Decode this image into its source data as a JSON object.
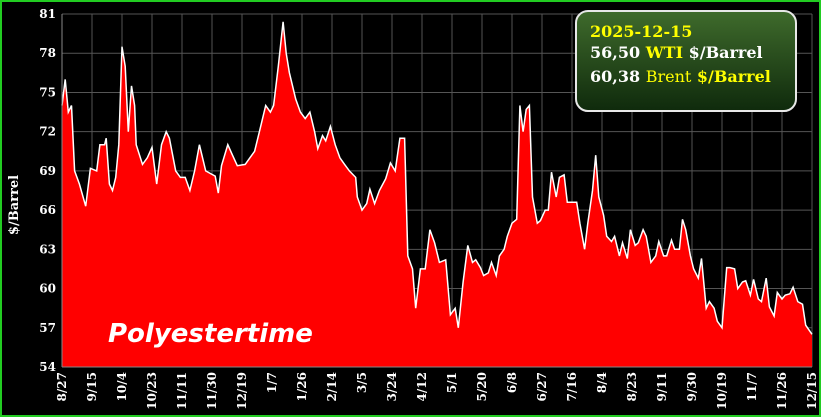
{
  "chart_data": {
    "type": "area",
    "ylabel": "$/Barrel",
    "watermark": "Polyestertime",
    "color": "#ff0000",
    "line_color": "#ffffff",
    "grid": true,
    "xlim": [
      0,
      475
    ],
    "ylim": [
      54,
      81
    ],
    "yticks": [
      54,
      57,
      60,
      63,
      66,
      69,
      72,
      75,
      78,
      81
    ],
    "xticks": [
      {
        "value": 0,
        "label": "8/27"
      },
      {
        "value": 19,
        "label": "9/15"
      },
      {
        "value": 38,
        "label": "10/4"
      },
      {
        "value": 57,
        "label": "10/23"
      },
      {
        "value": 76,
        "label": "11/11"
      },
      {
        "value": 95,
        "label": "11/30"
      },
      {
        "value": 114,
        "label": "12/19"
      },
      {
        "value": 133,
        "label": "1/7"
      },
      {
        "value": 152,
        "label": "1/26"
      },
      {
        "value": 171,
        "label": "2/14"
      },
      {
        "value": 190,
        "label": "3/5"
      },
      {
        "value": 209,
        "label": "3/24"
      },
      {
        "value": 228,
        "label": "4/12"
      },
      {
        "value": 247,
        "label": "5/1"
      },
      {
        "value": 266,
        "label": "5/20"
      },
      {
        "value": 285,
        "label": "6/8"
      },
      {
        "value": 304,
        "label": "6/27"
      },
      {
        "value": 323,
        "label": "7/16"
      },
      {
        "value": 342,
        "label": "8/4"
      },
      {
        "value": 361,
        "label": "8/23"
      },
      {
        "value": 380,
        "label": "9/11"
      },
      {
        "value": 399,
        "label": "9/30"
      },
      {
        "value": 418,
        "label": "10/19"
      },
      {
        "value": 437,
        "label": "11/7"
      },
      {
        "value": 456,
        "label": "11/26"
      },
      {
        "value": 475,
        "label": "12/15"
      }
    ],
    "x": [
      0,
      2,
      4,
      6,
      8,
      11,
      15,
      18,
      22,
      24,
      27,
      28,
      30,
      32,
      34,
      36,
      38,
      40,
      42,
      44,
      46,
      47,
      51,
      54,
      57,
      60,
      63,
      66,
      68,
      72,
      75,
      78,
      81,
      84,
      87,
      91,
      94,
      97,
      99,
      101,
      105,
      108,
      111,
      116,
      119,
      122,
      125,
      129,
      132,
      134,
      137,
      140,
      142,
      144,
      148,
      151,
      154,
      157,
      160,
      162,
      165,
      167,
      170,
      173,
      176,
      179,
      182,
      186,
      187,
      190,
      193,
      195,
      198,
      201,
      205,
      208,
      211,
      214,
      217,
      219,
      222,
      224,
      227,
      230,
      233,
      236,
      239,
      243,
      246,
      249,
      251,
      254,
      257,
      260,
      262,
      265,
      267,
      270,
      272,
      275,
      277,
      280,
      282,
      285,
      288,
      290,
      292,
      294,
      296,
      298,
      301,
      303,
      306,
      308,
      310,
      313,
      315,
      318,
      320,
      323,
      326,
      328,
      331,
      333,
      336,
      338,
      340,
      343,
      345,
      348,
      350,
      353,
      355,
      358,
      360,
      363,
      365,
      368,
      370,
      373,
      376,
      378,
      381,
      383,
      386,
      388,
      391,
      393,
      395,
      398,
      400,
      403,
      405,
      408,
      410,
      413,
      415,
      418,
      421,
      423,
      426,
      428,
      431,
      433,
      436,
      438,
      441,
      443,
      446,
      448,
      451,
      453,
      456,
      458,
      461,
      463,
      466,
      469,
      471,
      475
    ],
    "values": [
      74,
      76,
      73.5,
      74,
      69,
      68,
      66.3,
      69.2,
      69,
      71,
      71,
      71.5,
      68,
      67.5,
      68.5,
      71,
      78.5,
      77,
      72,
      75.5,
      74,
      71,
      69.5,
      70,
      70.8,
      68,
      71,
      72,
      71.5,
      69,
      68.5,
      68.5,
      67.5,
      69,
      71,
      69,
      68.8,
      68.6,
      67.3,
      69.4,
      71,
      70.2,
      69.4,
      69.5,
      70,
      70.5,
      72,
      74,
      73.5,
      74,
      77,
      80.4,
      78,
      76.5,
      74.5,
      73.5,
      73,
      73.5,
      72,
      70.7,
      71.7,
      71.3,
      72.4,
      71,
      70,
      69.5,
      69,
      68.5,
      67,
      66,
      66.5,
      67.6,
      66.5,
      67.5,
      68.4,
      69.6,
      69,
      71.5,
      71.5,
      62.5,
      61.5,
      58.5,
      61.5,
      61.5,
      64.5,
      63.5,
      62,
      62.2,
      58,
      58.5,
      57,
      60.5,
      63.3,
      62,
      62.2,
      61.6,
      61,
      61.2,
      62,
      61,
      62.5,
      63,
      64,
      65,
      65.3,
      74,
      72,
      73.7,
      74,
      67,
      65,
      65.2,
      66,
      66,
      68.9,
      67,
      68.5,
      68.7,
      66.6,
      66.6,
      66.6,
      65,
      63,
      65,
      67.5,
      70.2,
      67,
      65.6,
      64,
      63.6,
      64,
      62.5,
      63.5,
      62.3,
      64.5,
      63.3,
      63.5,
      64.5,
      64,
      62,
      62.5,
      63.6,
      62.5,
      62.5,
      63.7,
      63,
      63,
      65.3,
      64.5,
      62.5,
      61.5,
      60.8,
      62.3,
      58.5,
      59,
      58.5,
      57.5,
      57,
      61.6,
      61.6,
      61.5,
      60,
      60.5,
      60.6,
      59.5,
      60.7,
      59.2,
      59,
      60.8,
      58.6,
      57.9,
      59.7,
      59.2,
      59.5,
      59.6,
      60.1,
      59,
      58.8,
      57.2,
      56.5
    ],
    "annotation": {
      "date": "2025-12-15",
      "wti": {
        "price": "56,50",
        "name": "WTI",
        "unit": "$/Barrel"
      },
      "brent": {
        "price": "60,38",
        "name": "Brent",
        "unit": "$/Barrel"
      }
    }
  }
}
